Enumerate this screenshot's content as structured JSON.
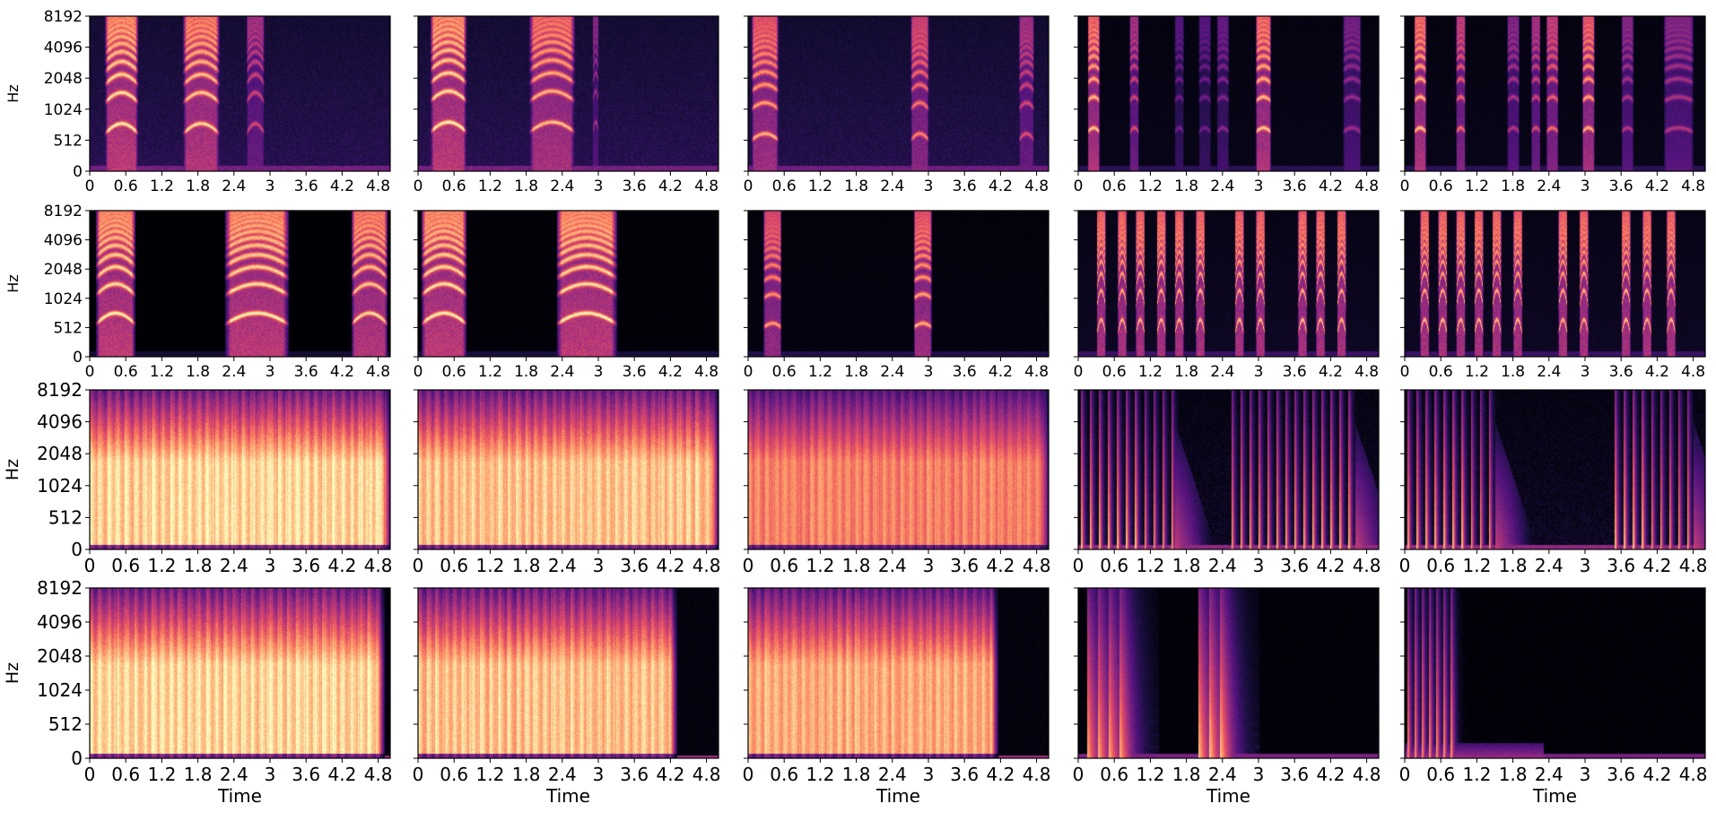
{
  "chart_data": {
    "type": "heatmap",
    "description_kind": "spectrogram-grid",
    "rows": 4,
    "cols": 5,
    "colormap": "magma",
    "xlabel": "Time",
    "ylabel": "Hz",
    "xlim": [
      0,
      5.0
    ],
    "x_ticks": [
      "0",
      "0.6",
      "1.2",
      "1.8",
      "2.4",
      "3",
      "3.6",
      "4.2",
      "4.8"
    ],
    "x_tick_values": [
      0,
      0.6,
      1.2,
      1.8,
      2.4,
      3.0,
      3.6,
      4.2,
      4.8
    ],
    "y_ticks": [
      "0",
      "512",
      "1024",
      "2048",
      "4096",
      "8192"
    ],
    "y_tick_values": [
      0,
      512,
      1024,
      2048,
      4096,
      8192
    ],
    "y_scale": "symlog",
    "panels": [
      {
        "row": 0,
        "col": 0,
        "type": "harmonic",
        "segments": [
          [
            0.25,
            0.8,
            1.0
          ],
          [
            1.55,
            2.15,
            0.95
          ],
          [
            2.6,
            2.9,
            0.6
          ]
        ],
        "noise": 0.3,
        "f0": 600,
        "bend": 0.25
      },
      {
        "row": 0,
        "col": 1,
        "type": "harmonic",
        "segments": [
          [
            0.2,
            0.8,
            1.0
          ],
          [
            1.85,
            2.6,
            0.9
          ],
          [
            2.9,
            3.0,
            0.5
          ]
        ],
        "noise": 0.3,
        "f0": 620,
        "bend": 0.25
      },
      {
        "row": 0,
        "col": 2,
        "type": "harmonic",
        "segments": [
          [
            0.05,
            0.5,
            0.85
          ],
          [
            2.7,
            3.0,
            0.75
          ],
          [
            4.5,
            4.75,
            0.6
          ]
        ],
        "noise": 0.28,
        "f0": 520,
        "bend": 0.15
      },
      {
        "row": 0,
        "col": 3,
        "type": "sparse",
        "segments": [
          [
            0.15,
            0.35,
            0.9
          ],
          [
            0.85,
            1.0,
            0.6
          ],
          [
            1.6,
            1.75,
            0.35
          ],
          [
            2.0,
            2.2,
            0.35
          ],
          [
            2.3,
            2.5,
            0.4
          ],
          [
            2.95,
            3.2,
            0.9
          ],
          [
            4.4,
            4.7,
            0.45
          ]
        ],
        "noise": 0.08,
        "f0": 620,
        "bend": 0.1
      },
      {
        "row": 0,
        "col": 4,
        "type": "sparse",
        "segments": [
          [
            0.15,
            0.35,
            0.9
          ],
          [
            0.85,
            1.0,
            0.7
          ],
          [
            1.7,
            1.9,
            0.5
          ],
          [
            2.1,
            2.25,
            0.6
          ],
          [
            2.35,
            2.55,
            0.7
          ],
          [
            2.95,
            3.15,
            0.85
          ],
          [
            3.6,
            3.8,
            0.5
          ],
          [
            4.3,
            4.8,
            0.5
          ]
        ],
        "noise": 0.08,
        "f0": 620,
        "bend": 0.1
      },
      {
        "row": 1,
        "col": 0,
        "type": "harmonic",
        "segments": [
          [
            0.1,
            0.75,
            1.0
          ],
          [
            2.25,
            3.3,
            1.0
          ],
          [
            4.35,
            4.95,
            0.95
          ]
        ],
        "noise": 0.0,
        "f0": 560,
        "bend": 0.3
      },
      {
        "row": 1,
        "col": 1,
        "type": "harmonic",
        "segments": [
          [
            0.05,
            0.8,
            1.0
          ],
          [
            2.3,
            3.3,
            1.0
          ]
        ],
        "noise": 0.02,
        "f0": 560,
        "bend": 0.3
      },
      {
        "row": 1,
        "col": 2,
        "type": "harmonic",
        "segments": [
          [
            0.25,
            0.55,
            0.8
          ],
          [
            2.75,
            3.05,
            0.85
          ]
        ],
        "noise": 0.05,
        "f0": 520,
        "bend": 0.1
      },
      {
        "row": 1,
        "col": 3,
        "type": "pulses",
        "segments": [
          [
            0.3,
            0.45,
            0.9
          ],
          [
            0.65,
            0.8,
            0.9
          ],
          [
            0.95,
            1.1,
            0.9
          ],
          [
            1.3,
            1.45,
            0.9
          ],
          [
            1.6,
            1.75,
            0.9
          ],
          [
            1.95,
            2.1,
            0.9
          ],
          [
            2.6,
            2.75,
            0.9
          ],
          [
            2.95,
            3.1,
            0.9
          ],
          [
            3.65,
            3.8,
            0.9
          ],
          [
            3.95,
            4.1,
            0.9
          ],
          [
            4.3,
            4.45,
            0.9
          ]
        ],
        "noise": 0.12,
        "f0": 520,
        "bend": 0.0
      },
      {
        "row": 1,
        "col": 4,
        "type": "pulses",
        "segments": [
          [
            0.25,
            0.4,
            0.9
          ],
          [
            0.55,
            0.7,
            0.9
          ],
          [
            0.85,
            1.0,
            0.9
          ],
          [
            1.15,
            1.3,
            0.9
          ],
          [
            1.45,
            1.6,
            0.9
          ],
          [
            1.8,
            1.95,
            0.9
          ],
          [
            2.55,
            2.7,
            0.9
          ],
          [
            2.9,
            3.05,
            0.9
          ],
          [
            3.6,
            3.75,
            0.9
          ],
          [
            3.95,
            4.1,
            0.9
          ],
          [
            4.35,
            4.5,
            0.9
          ]
        ],
        "noise": 0.12,
        "f0": 520,
        "bend": 0.0
      },
      {
        "row": 2,
        "col": 0,
        "type": "broadband",
        "segments": [
          [
            0.0,
            5.0,
            1.0
          ]
        ],
        "noise": 0.9,
        "f0": 0,
        "bend": 0
      },
      {
        "row": 2,
        "col": 1,
        "type": "broadband",
        "segments": [
          [
            0.0,
            5.0,
            0.95
          ]
        ],
        "noise": 0.9,
        "f0": 0,
        "bend": 0
      },
      {
        "row": 2,
        "col": 2,
        "type": "broadband",
        "segments": [
          [
            0.0,
            5.0,
            0.8
          ]
        ],
        "noise": 0.8,
        "f0": 0,
        "bend": 0
      },
      {
        "row": 2,
        "col": 3,
        "type": "strikes",
        "segments": [
          [
            0.05,
            1.6,
            0.95
          ],
          [
            2.55,
            4.6,
            0.95
          ]
        ],
        "noise": 0.5,
        "f0": 0,
        "bend": 0,
        "spacing": 0.15,
        "decay": "tail"
      },
      {
        "row": 2,
        "col": 4,
        "type": "strikes",
        "segments": [
          [
            0.05,
            1.5,
            0.95
          ],
          [
            3.5,
            4.8,
            0.95
          ]
        ],
        "noise": 0.5,
        "f0": 0,
        "bend": 0,
        "spacing": 0.15,
        "decay": "tail"
      },
      {
        "row": 3,
        "col": 0,
        "type": "broadband",
        "segments": [
          [
            0.0,
            4.9,
            1.0
          ]
        ],
        "noise": 0.9,
        "f0": 0,
        "bend": 0
      },
      {
        "row": 3,
        "col": 1,
        "type": "broadband",
        "segments": [
          [
            0.0,
            4.3,
            0.95
          ]
        ],
        "noise": 0.9,
        "f0": 0,
        "bend": 0
      },
      {
        "row": 3,
        "col": 2,
        "type": "broadband",
        "segments": [
          [
            0.0,
            4.15,
            0.9
          ]
        ],
        "noise": 0.85,
        "f0": 0,
        "bend": 0
      },
      {
        "row": 3,
        "col": 3,
        "type": "strikes",
        "segments": [
          [
            0.15,
            0.8,
            0.9
          ],
          [
            2.0,
            2.4,
            0.95
          ]
        ],
        "noise": 0.1,
        "f0": 0,
        "bend": 0,
        "spacing": 0.18,
        "decay": "long"
      },
      {
        "row": 3,
        "col": 4,
        "type": "strikes",
        "segments": [
          [
            0.05,
            0.8,
            0.85
          ]
        ],
        "noise": 0.05,
        "f0": 0,
        "bend": 0,
        "spacing": 0.12,
        "decay": "short",
        "tail_end": 2.3
      }
    ]
  }
}
